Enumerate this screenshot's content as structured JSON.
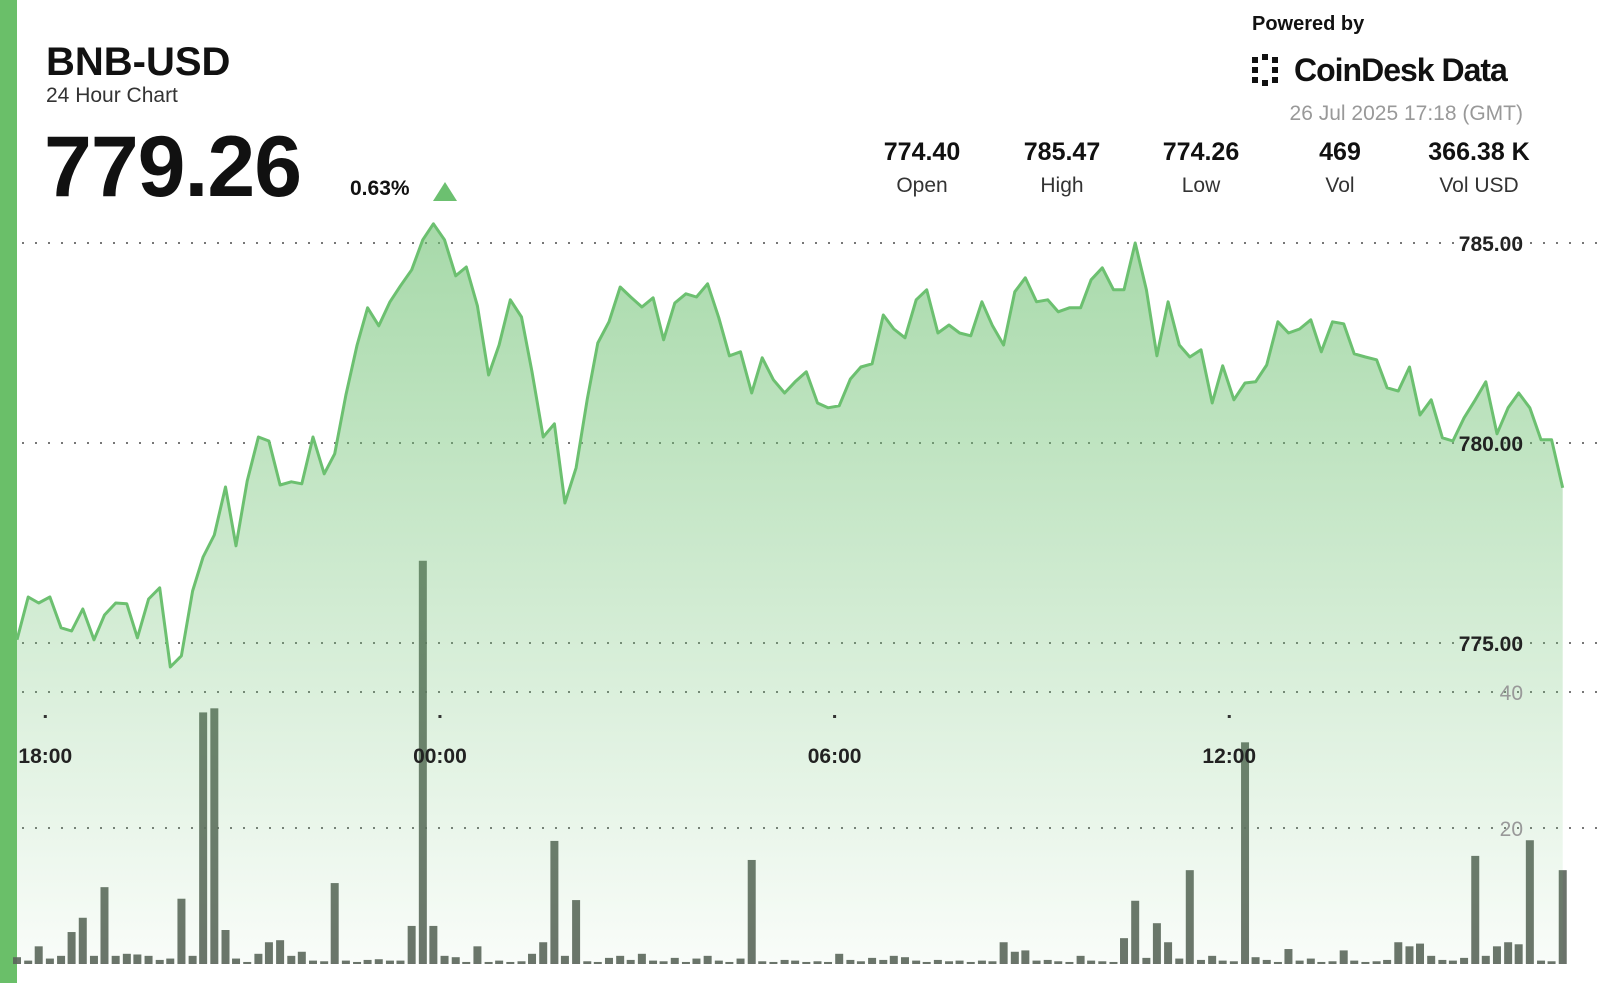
{
  "header": {
    "title": "BNB-USD",
    "subtitle": "24 Hour Chart",
    "price": "779.26",
    "change": "0.63%",
    "powered_by": "Powered by",
    "brand": "CoinDesk Data",
    "timestamp": "26 Jul 2025 17:18 (GMT)",
    "stats": [
      {
        "value": "774.40",
        "label": "Open"
      },
      {
        "value": "785.47",
        "label": "High"
      },
      {
        "value": "774.26",
        "label": "Low"
      },
      {
        "value": "469",
        "label": "Vol"
      },
      {
        "value": "366.38 K",
        "label": "Vol USD"
      }
    ]
  },
  "chart_data": {
    "type": "line",
    "x": [
      17.57,
      17.74,
      17.9,
      18.07,
      18.24,
      18.4,
      18.57,
      18.74,
      18.9,
      19.07,
      19.24,
      19.4,
      19.57,
      19.74,
      19.9,
      20.07,
      20.24,
      20.4,
      20.57,
      20.74,
      20.9,
      21.07,
      21.24,
      21.4,
      21.57,
      21.74,
      21.9,
      22.07,
      22.24,
      22.4,
      22.57,
      22.74,
      22.9,
      23.07,
      23.24,
      23.4,
      23.57,
      23.74,
      23.9,
      24.07,
      24.24,
      24.4,
      24.57,
      24.74,
      24.9,
      25.07,
      25.24,
      25.4,
      25.57,
      25.74,
      25.9,
      26.07,
      26.24,
      26.4,
      26.57,
      26.74,
      26.9,
      27.07,
      27.24,
      27.4,
      27.57,
      27.74,
      27.9,
      28.07,
      28.24,
      28.4,
      28.57,
      28.74,
      28.9,
      29.07,
      29.24,
      29.4,
      29.57,
      29.74,
      29.9,
      30.07,
      30.24,
      30.4,
      30.57,
      30.74,
      30.9,
      31.07,
      31.24,
      31.4,
      31.57,
      31.74,
      31.9,
      32.07,
      32.24,
      32.4,
      32.57,
      32.74,
      32.9,
      33.07,
      33.24,
      33.4,
      33.57,
      33.74,
      33.9,
      34.07,
      34.24,
      34.4,
      34.57,
      34.74,
      34.9,
      35.07,
      35.24,
      35.4,
      35.57,
      35.74,
      35.9,
      36.07,
      36.24,
      36.4,
      36.57,
      36.74,
      36.9,
      37.07,
      37.24,
      37.4,
      37.57,
      37.74,
      37.9,
      38.07,
      38.24,
      38.4,
      38.57,
      38.74,
      38.9,
      39.07,
      39.24,
      39.4,
      39.57,
      39.74,
      39.9,
      40.07,
      40.24,
      40.4,
      40.57,
      40.74,
      40.9,
      41.07
    ],
    "series": [
      {
        "color": "#6cc070",
        "values": [
          775.08,
          776.15,
          776.0,
          776.15,
          775.38,
          775.3,
          775.85,
          775.08,
          775.7,
          776.0,
          775.98,
          775.13,
          776.1,
          776.38,
          774.4,
          774.68,
          776.3,
          777.15,
          777.7,
          778.9,
          777.43,
          779.05,
          780.15,
          780.05,
          778.95,
          779.03,
          778.98,
          780.15,
          779.23,
          779.73,
          781.2,
          782.45,
          783.38,
          782.93,
          783.53,
          783.93,
          784.33,
          785.08,
          785.48,
          785.08,
          784.18,
          784.4,
          783.43,
          781.7,
          782.45,
          783.58,
          783.15,
          781.78,
          780.15,
          780.48,
          778.5,
          779.38,
          781.1,
          782.5,
          783.03,
          783.9,
          783.65,
          783.4,
          783.63,
          782.58,
          783.5,
          783.73,
          783.65,
          783.98,
          783.13,
          782.18,
          782.28,
          781.25,
          782.13,
          781.58,
          781.25,
          781.53,
          781.78,
          781.0,
          780.88,
          780.93,
          781.6,
          781.9,
          781.98,
          783.2,
          782.85,
          782.63,
          783.58,
          783.83,
          782.75,
          782.95,
          782.75,
          782.68,
          783.53,
          782.93,
          782.45,
          783.78,
          784.13,
          783.53,
          783.58,
          783.28,
          783.38,
          783.38,
          784.08,
          784.38,
          783.83,
          783.83,
          785.0,
          783.83,
          782.18,
          783.53,
          782.45,
          782.15,
          782.33,
          781.0,
          781.93,
          781.08,
          781.5,
          781.53,
          781.95,
          783.03,
          782.75,
          782.85,
          783.08,
          782.28,
          783.03,
          782.98,
          782.23,
          782.15,
          782.08,
          781.38,
          781.3,
          781.9,
          780.7,
          781.08,
          780.13,
          780.05,
          780.63,
          781.08,
          781.53,
          780.23,
          780.88,
          781.25,
          780.88,
          780.08,
          780.08,
          778.88
        ]
      },
      {
        "type": "bar",
        "axis": "y2",
        "color": "#5a635a",
        "values": [
          1.0,
          0.5,
          2.6,
          0.8,
          1.2,
          4.7,
          6.8,
          1.2,
          11.3,
          1.2,
          1.5,
          1.4,
          1.2,
          0.6,
          0.8,
          9.6,
          1.2,
          37.0,
          37.6,
          5.0,
          0.8,
          0.3,
          1.5,
          3.2,
          3.5,
          1.2,
          1.8,
          0.5,
          0.4,
          11.9,
          0.5,
          0.3,
          0.6,
          0.7,
          0.5,
          0.5,
          5.6,
          59.3,
          5.6,
          1.2,
          1.0,
          0.3,
          2.6,
          0.3,
          0.5,
          0.3,
          0.4,
          1.5,
          3.2,
          18.1,
          1.2,
          9.4,
          0.4,
          0.3,
          0.9,
          1.2,
          0.6,
          1.5,
          0.5,
          0.4,
          0.9,
          0.3,
          0.8,
          1.2,
          0.5,
          0.3,
          0.8,
          15.3,
          0.4,
          0.3,
          0.6,
          0.5,
          0.3,
          0.4,
          0.3,
          1.5,
          0.6,
          0.4,
          0.9,
          0.6,
          1.2,
          1.0,
          0.5,
          0.3,
          0.6,
          0.4,
          0.5,
          0.3,
          0.5,
          0.4,
          3.2,
          1.8,
          2.0,
          0.5,
          0.6,
          0.4,
          0.3,
          1.2,
          0.5,
          0.4,
          0.3,
          3.8,
          9.3,
          0.9,
          6.0,
          3.2,
          0.8,
          13.8,
          0.6,
          1.2,
          0.5,
          0.4,
          32.6,
          1.0,
          0.6,
          0.3,
          2.2,
          0.5,
          0.8,
          0.3,
          0.4,
          2.0,
          0.5,
          0.3,
          0.4,
          0.6,
          3.2,
          2.6,
          3.0,
          1.2,
          0.6,
          0.5,
          0.9,
          15.9,
          1.2,
          2.6,
          3.2,
          2.9,
          18.2,
          0.5,
          0.4,
          13.8
        ]
      }
    ],
    "xlim": [
      17.57,
      41.15
    ],
    "xticks": [
      {
        "value": 18,
        "label": "18:00"
      },
      {
        "value": 24,
        "label": "00:00"
      },
      {
        "value": 30,
        "label": "06:00"
      },
      {
        "value": 36,
        "label": "12:00"
      }
    ],
    "ylim": [
      767,
      785.5
    ],
    "yticks": [
      {
        "value": 775,
        "label": "775.00"
      },
      {
        "value": 780,
        "label": "780.00"
      },
      {
        "value": 785,
        "label": "785.00"
      }
    ],
    "y2lim": [
      0,
      60
    ],
    "y2ticks": [
      20,
      40
    ],
    "grid": true
  }
}
